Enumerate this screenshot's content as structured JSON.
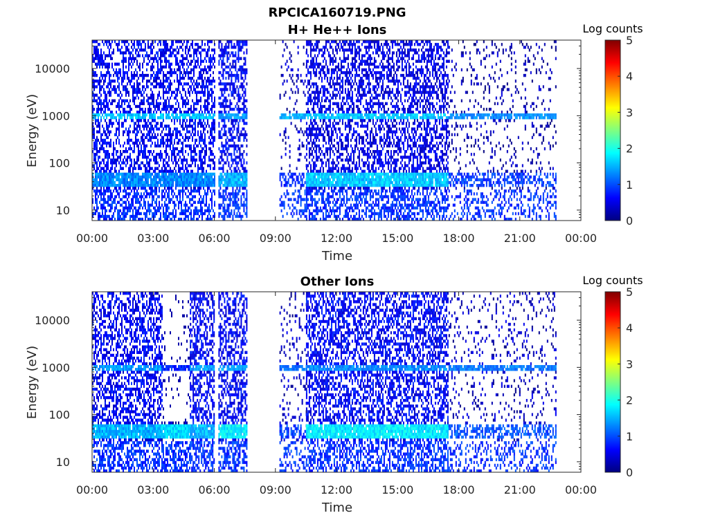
{
  "figure_title": "RPCICA160719.PNG",
  "chart_data": [
    {
      "type": "heatmap",
      "title": "H+ He++ Ions",
      "xlabel": "Time",
      "ylabel": "Energy (eV)",
      "x_ticks": [
        "00:00",
        "03:00",
        "06:00",
        "09:00",
        "12:00",
        "15:00",
        "18:00",
        "21:00",
        "00:00"
      ],
      "y_ticks": [
        "10",
        "100",
        "1000",
        "10000"
      ],
      "y_tick_values": [
        10,
        100,
        1000,
        10000
      ],
      "ylim": [
        6,
        40000
      ],
      "yscale": "log",
      "xlim_hours": [
        0,
        24
      ],
      "colorbar": {
        "label": "Log counts",
        "ticks": [
          "0",
          "1",
          "2",
          "3",
          "4",
          "5"
        ],
        "range": [
          0,
          5
        ]
      },
      "segments": [
        {
          "start_h": 0.0,
          "end_h": 6.0,
          "coverage": "full",
          "background_level": 0.6,
          "band_1000": 1.6,
          "low_band": 1.3
        },
        {
          "start_h": 6.2,
          "end_h": 7.6,
          "coverage": "full",
          "background_level": 0.6,
          "band_1000": 1.4,
          "low_band": 1.5
        },
        {
          "start_h": 9.2,
          "end_h": 10.5,
          "coverage": "sparse",
          "background_level": 0.3,
          "band_1000": 1.5,
          "low_band": 0.8
        },
        {
          "start_h": 10.5,
          "end_h": 17.5,
          "coverage": "full",
          "background_level": 0.5,
          "band_1000": 1.6,
          "low_band": 1.6
        },
        {
          "start_h": 17.5,
          "end_h": 22.8,
          "coverage": "sparse",
          "background_level": 0.2,
          "band_1000": 1.3,
          "low_band": 0.9
        }
      ]
    },
    {
      "type": "heatmap",
      "title": "Other Ions",
      "xlabel": "Time",
      "ylabel": "Energy (eV)",
      "x_ticks": [
        "00:00",
        "03:00",
        "06:00",
        "09:00",
        "12:00",
        "15:00",
        "18:00",
        "21:00",
        "00:00"
      ],
      "y_ticks": [
        "10",
        "100",
        "1000",
        "10000"
      ],
      "y_tick_values": [
        10,
        100,
        1000,
        10000
      ],
      "ylim": [
        6,
        40000
      ],
      "yscale": "log",
      "xlim_hours": [
        0,
        24
      ],
      "colorbar": {
        "label": "Log counts",
        "ticks": [
          "0",
          "1",
          "2",
          "3",
          "4",
          "5"
        ],
        "range": [
          0,
          5
        ]
      },
      "segments": [
        {
          "start_h": 0.0,
          "end_h": 3.4,
          "coverage": "full",
          "background_level": 0.6,
          "band_1000": 1.4,
          "low_band": 1.5
        },
        {
          "start_h": 3.4,
          "end_h": 4.8,
          "coverage": "low_only",
          "background_level": 0.2,
          "band_1000": 0.8,
          "low_band": 1.7
        },
        {
          "start_h": 4.8,
          "end_h": 6.0,
          "coverage": "full",
          "background_level": 0.6,
          "band_1000": 1.4,
          "low_band": 1.5
        },
        {
          "start_h": 6.2,
          "end_h": 7.6,
          "coverage": "full",
          "background_level": 0.6,
          "band_1000": 1.4,
          "low_band": 1.8
        },
        {
          "start_h": 9.2,
          "end_h": 10.5,
          "coverage": "sparse",
          "background_level": 0.3,
          "band_1000": 1.2,
          "low_band": 0.9
        },
        {
          "start_h": 10.5,
          "end_h": 17.5,
          "coverage": "full",
          "background_level": 0.6,
          "band_1000": 1.3,
          "low_band": 1.8
        },
        {
          "start_h": 17.5,
          "end_h": 22.8,
          "coverage": "sparse",
          "background_level": 0.3,
          "band_1000": 1.2,
          "low_band": 1.0
        }
      ]
    }
  ]
}
